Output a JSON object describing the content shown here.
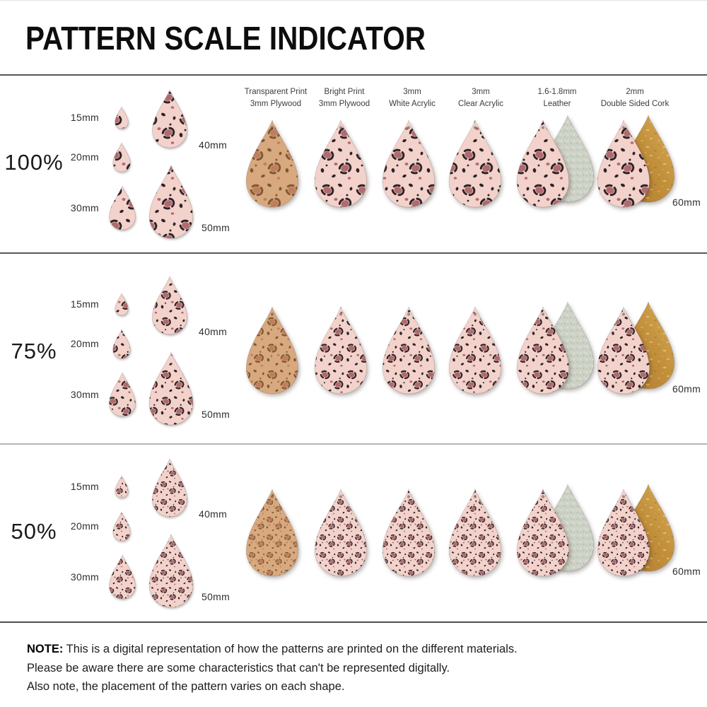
{
  "title": "PATTERN SCALE INDICATOR",
  "columns": [
    {
      "line1": "Transparent Print",
      "line2": "3mm Plywood"
    },
    {
      "line1": "Bright Print",
      "line2": "3mm Plywood"
    },
    {
      "line1": "3mm",
      "line2": "White Acrylic"
    },
    {
      "line1": "3mm",
      "line2": "Clear Acrylic"
    },
    {
      "line1": "1.6-1.8mm",
      "line2": "Leather"
    },
    {
      "line1": "2mm",
      "line2": "Double Sided Cork"
    }
  ],
  "rows": [
    {
      "scale_label": "100%",
      "pattern_scale": 1
    },
    {
      "scale_label": "75%",
      "pattern_scale": 0.75
    },
    {
      "scale_label": "50%",
      "pattern_scale": 0.5
    }
  ],
  "reference_sizes": [
    "15mm",
    "20mm",
    "30mm",
    "40mm",
    "50mm"
  ],
  "swatch_size_label": "60mm",
  "note": {
    "label": "NOTE:",
    "lines": [
      "This is a digital representation of how the patterns are printed on the different materials.",
      "Please be aware there are some characteristics that can't be represented digitally.",
      "Also note, the placement of the pattern varies on each shape."
    ]
  },
  "colors": {
    "background": "#ffffff",
    "rule_dark": "#565656",
    "rule_light": "#b5b5b5",
    "leopard_pink": "#f3d2cb",
    "leopard_rose": "#b16a6d",
    "leopard_black": "#2d2428",
    "plywood_tan": "#d8a87e",
    "plywood_rose": "#c07d5f",
    "plywood_dark": "#7d5a31",
    "leather_suede": "#cdd2c6",
    "cork_light": "#d9ad5c",
    "cork_dark": "#b07a2e"
  }
}
